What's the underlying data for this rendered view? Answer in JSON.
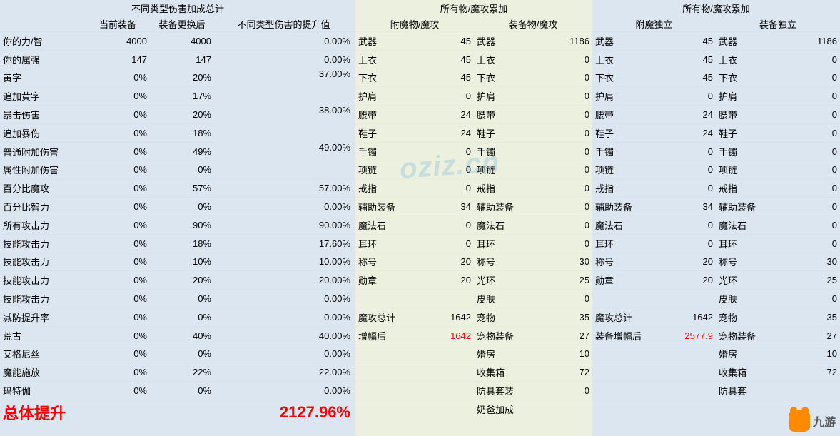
{
  "left": {
    "topHeader": "不同类型伤害加成总计",
    "subHeaders": [
      "当前装备",
      "装备更换后",
      "不同类型伤害的提升值"
    ],
    "rows": [
      {
        "label": "你的力/智",
        "c2": "4000",
        "c3": "4000",
        "c4": "0.00%"
      },
      {
        "label": "你的属强",
        "c2": "147",
        "c3": "147",
        "c4": "0.00%"
      }
    ],
    "merged": [
      {
        "r1": {
          "label": "黄字",
          "c2": "0%",
          "c3": "20%"
        },
        "r2": {
          "label": "追加黄字",
          "c2": "0%",
          "c3": "17%"
        },
        "c4": "37.00%"
      },
      {
        "r1": {
          "label": "暴击伤害",
          "c2": "0%",
          "c3": "20%"
        },
        "r2": {
          "label": "追加暴伤",
          "c2": "0%",
          "c3": "18%"
        },
        "c4": "38.00%"
      },
      {
        "r1": {
          "label": "普通附加伤害",
          "c2": "0%",
          "c3": "49%"
        },
        "r2": {
          "label": "属性附加伤害",
          "c2": "0%",
          "c3": "0%"
        },
        "c4": "49.00%"
      }
    ],
    "rows2": [
      {
        "label": "百分比魔攻",
        "c2": "0%",
        "c3": "57%",
        "c4": "57.00%"
      },
      {
        "label": "百分比智力",
        "c2": "0%",
        "c3": "0%",
        "c4": "0.00%"
      },
      {
        "label": "所有攻击力",
        "c2": "0%",
        "c3": "90%",
        "c4": "90.00%"
      },
      {
        "label": "技能攻击力",
        "c2": "0%",
        "c3": "18%",
        "c4": "17.60%"
      },
      {
        "label": "技能攻击力",
        "c2": "0%",
        "c3": "10%",
        "c4": "10.00%"
      },
      {
        "label": "技能攻击力",
        "c2": "0%",
        "c3": "20%",
        "c4": "20.00%"
      },
      {
        "label": "技能攻击力",
        "c2": "0%",
        "c3": "0%",
        "c4": "0.00%"
      },
      {
        "label": "减防提升率",
        "c2": "0%",
        "c3": "0%",
        "c4": "0.00%"
      },
      {
        "label": "荒古",
        "c2": "0%",
        "c3": "40%",
        "c4": "40.00%"
      },
      {
        "label": "艾格尼丝",
        "c2": "0%",
        "c3": "0%",
        "c4": "0.00%"
      },
      {
        "label": "魔能施放",
        "c2": "0%",
        "c3": "22%",
        "c4": "22.00%"
      },
      {
        "label": "玛特伽",
        "c2": "0%",
        "c3": "0%",
        "c4": "0.00%"
      }
    ],
    "totalLabel": "总体提升",
    "totalValue": "2127.96%"
  },
  "mid": {
    "topHeader": "所有物/魔攻累加",
    "subHeaders": [
      "附魔物/魔攻",
      "装备物/魔攻"
    ],
    "rowsA": [
      {
        "l": "武器",
        "v": "45"
      },
      {
        "l": "上衣",
        "v": "45"
      },
      {
        "l": "下衣",
        "v": "45"
      },
      {
        "l": "护肩",
        "v": "0"
      },
      {
        "l": "腰带",
        "v": "24"
      },
      {
        "l": "鞋子",
        "v": "24"
      },
      {
        "l": "手镯",
        "v": "0"
      },
      {
        "l": "项链",
        "v": "0"
      },
      {
        "l": "戒指",
        "v": "0"
      },
      {
        "l": "辅助装备",
        "v": "34"
      },
      {
        "l": "魔法石",
        "v": "0"
      },
      {
        "l": "耳环",
        "v": "0"
      },
      {
        "l": "称号",
        "v": "20"
      },
      {
        "l": "勋章",
        "v": "20"
      },
      {
        "l": "",
        "v": ""
      },
      {
        "l": "魔攻总计",
        "v": "1642"
      },
      {
        "l": "增幅后",
        "v": "1642",
        "red": true
      }
    ],
    "rowsB": [
      {
        "l": "武器",
        "v": "1186"
      },
      {
        "l": "上衣",
        "v": "0"
      },
      {
        "l": "下衣",
        "v": "0"
      },
      {
        "l": "护肩",
        "v": "0"
      },
      {
        "l": "腰带",
        "v": "0"
      },
      {
        "l": "鞋子",
        "v": "0"
      },
      {
        "l": "手镯",
        "v": "0"
      },
      {
        "l": "项链",
        "v": "0"
      },
      {
        "l": "戒指",
        "v": "0"
      },
      {
        "l": "辅助装备",
        "v": "0"
      },
      {
        "l": "魔法石",
        "v": "0"
      },
      {
        "l": "耳环",
        "v": "0"
      },
      {
        "l": "称号",
        "v": "30"
      },
      {
        "l": "光环",
        "v": "25"
      },
      {
        "l": "皮肤",
        "v": "0"
      },
      {
        "l": "宠物",
        "v": "35"
      },
      {
        "l": "宠物装备",
        "v": "27"
      },
      {
        "l": "婚房",
        "v": "10"
      },
      {
        "l": "收集箱",
        "v": "72"
      },
      {
        "l": "防具套装",
        "v": "0"
      },
      {
        "l": "奶爸加成",
        "v": ""
      }
    ]
  },
  "right": {
    "topHeader": "所有物/魔攻累加",
    "subHeaders": [
      "附魔独立",
      "装备独立"
    ],
    "rowsA": [
      {
        "l": "武器",
        "v": "45"
      },
      {
        "l": "上衣",
        "v": "45"
      },
      {
        "l": "下衣",
        "v": "45"
      },
      {
        "l": "护肩",
        "v": "0"
      },
      {
        "l": "腰带",
        "v": "24"
      },
      {
        "l": "鞋子",
        "v": "24"
      },
      {
        "l": "手镯",
        "v": "0"
      },
      {
        "l": "项链",
        "v": "0"
      },
      {
        "l": "戒指",
        "v": "0"
      },
      {
        "l": "辅助装备",
        "v": "34"
      },
      {
        "l": "魔法石",
        "v": "0"
      },
      {
        "l": "耳环",
        "v": "0"
      },
      {
        "l": "称号",
        "v": "20"
      },
      {
        "l": "勋章",
        "v": "20"
      },
      {
        "l": "",
        "v": ""
      },
      {
        "l": "魔攻总计",
        "v": "1642"
      },
      {
        "l": "装备增幅后",
        "v": "2577.9",
        "red": true
      }
    ],
    "rowsB": [
      {
        "l": "武器",
        "v": "1186"
      },
      {
        "l": "上衣",
        "v": "0"
      },
      {
        "l": "下衣",
        "v": "0"
      },
      {
        "l": "护肩",
        "v": "0"
      },
      {
        "l": "腰带",
        "v": "0"
      },
      {
        "l": "鞋子",
        "v": "0"
      },
      {
        "l": "手镯",
        "v": "0"
      },
      {
        "l": "项链",
        "v": "0"
      },
      {
        "l": "戒指",
        "v": "0"
      },
      {
        "l": "辅助装备",
        "v": "0"
      },
      {
        "l": "魔法石",
        "v": "0"
      },
      {
        "l": "耳环",
        "v": "0"
      },
      {
        "l": "称号",
        "v": "30"
      },
      {
        "l": "光环",
        "v": "25"
      },
      {
        "l": "皮肤",
        "v": "0"
      },
      {
        "l": "宠物",
        "v": "35"
      },
      {
        "l": "宠物装备",
        "v": "27"
      },
      {
        "l": "婚房",
        "v": "10"
      },
      {
        "l": "收集箱",
        "v": "72"
      },
      {
        "l": "防具套",
        "v": ""
      },
      {
        "l": "",
        "v": ""
      }
    ]
  },
  "logo": "九游",
  "watermark": "oziz.cn"
}
